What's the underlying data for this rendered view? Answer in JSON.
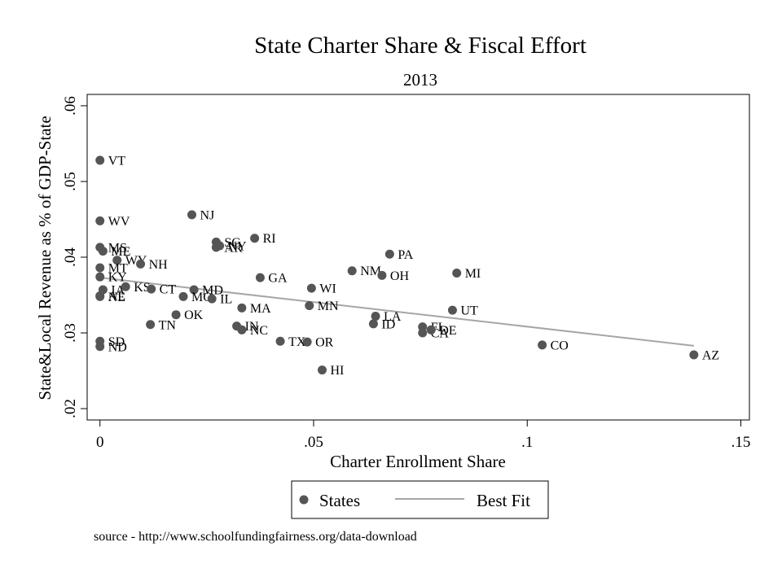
{
  "chart_data": {
    "type": "scatter",
    "title": "State Charter Share & Fiscal Effort",
    "subtitle": "2013",
    "xlabel": "Charter Enrollment Share",
    "ylabel": "State&Local Revenue as % of GDP-State",
    "xlim": [
      -0.003,
      0.152
    ],
    "ylim": [
      0.0185,
      0.0615
    ],
    "xticks": [
      0,
      0.05,
      0.1,
      0.15
    ],
    "xtick_labels": [
      "0",
      ".05",
      ".1",
      ".15"
    ],
    "yticks": [
      0.02,
      0.03,
      0.04,
      0.05,
      0.06
    ],
    "ytick_labels": [
      ".02",
      ".03",
      ".04",
      ".05",
      ".06"
    ],
    "grid": false,
    "legend": {
      "placement": "bottom",
      "entries": [
        {
          "label": "States",
          "type": "marker"
        },
        {
          "label": "Best Fit",
          "type": "line"
        }
      ]
    },
    "series": [
      {
        "name": "States",
        "points": [
          {
            "label": "VT",
            "x": 0.0,
            "y": 0.0528
          },
          {
            "label": "WV",
            "x": 0.0,
            "y": 0.0448
          },
          {
            "label": "MS",
            "x": 0.0,
            "y": 0.0413
          },
          {
            "label": "ME",
            "x": 0.0007,
            "y": 0.0408
          },
          {
            "label": "WY",
            "x": 0.004,
            "y": 0.0396
          },
          {
            "label": "NH",
            "x": 0.0095,
            "y": 0.0391
          },
          {
            "label": "MT",
            "x": 0.0,
            "y": 0.0386
          },
          {
            "label": "KY",
            "x": 0.0,
            "y": 0.0374
          },
          {
            "label": "IA",
            "x": 0.0007,
            "y": 0.0357
          },
          {
            "label": "KS",
            "x": 0.006,
            "y": 0.0361
          },
          {
            "label": "CT",
            "x": 0.012,
            "y": 0.0358
          },
          {
            "label": "NE",
            "x": 0.0,
            "y": 0.0348
          },
          {
            "label": "AL",
            "x": 0.0,
            "y": 0.0349
          },
          {
            "label": "SD",
            "x": 0.0,
            "y": 0.0289
          },
          {
            "label": "ND",
            "x": 0.0,
            "y": 0.0282
          },
          {
            "label": "NJ",
            "x": 0.0215,
            "y": 0.0456
          },
          {
            "label": "SC",
            "x": 0.0272,
            "y": 0.042
          },
          {
            "label": "NY",
            "x": 0.028,
            "y": 0.0415
          },
          {
            "label": "AR",
            "x": 0.0272,
            "y": 0.0413
          },
          {
            "label": "RI",
            "x": 0.0362,
            "y": 0.0425
          },
          {
            "label": "GA",
            "x": 0.0375,
            "y": 0.0373
          },
          {
            "label": "MD",
            "x": 0.022,
            "y": 0.0357
          },
          {
            "label": "MO",
            "x": 0.0195,
            "y": 0.0348
          },
          {
            "label": "IL",
            "x": 0.0262,
            "y": 0.0345
          },
          {
            "label": "OK",
            "x": 0.0178,
            "y": 0.0324
          },
          {
            "label": "TN",
            "x": 0.0118,
            "y": 0.0311
          },
          {
            "label": "MA",
            "x": 0.0332,
            "y": 0.0333
          },
          {
            "label": "IN",
            "x": 0.032,
            "y": 0.0309
          },
          {
            "label": "NC",
            "x": 0.0332,
            "y": 0.0304
          },
          {
            "label": "TX",
            "x": 0.0422,
            "y": 0.0289
          },
          {
            "label": "OR",
            "x": 0.0485,
            "y": 0.0288
          },
          {
            "label": "HI",
            "x": 0.052,
            "y": 0.0251
          },
          {
            "label": "WI",
            "x": 0.0495,
            "y": 0.0359
          },
          {
            "label": "MN",
            "x": 0.049,
            "y": 0.0336
          },
          {
            "label": "NM",
            "x": 0.059,
            "y": 0.0382
          },
          {
            "label": "OH",
            "x": 0.066,
            "y": 0.0376
          },
          {
            "label": "PA",
            "x": 0.0678,
            "y": 0.0404
          },
          {
            "label": "LA",
            "x": 0.0645,
            "y": 0.0322
          },
          {
            "label": "ID",
            "x": 0.064,
            "y": 0.0312
          },
          {
            "label": "FL",
            "x": 0.0755,
            "y": 0.0308
          },
          {
            "label": "CA",
            "x": 0.0755,
            "y": 0.03
          },
          {
            "label": "DE",
            "x": 0.0775,
            "y": 0.0304
          },
          {
            "label": "UT",
            "x": 0.0825,
            "y": 0.033
          },
          {
            "label": "MI",
            "x": 0.0835,
            "y": 0.0379
          },
          {
            "label": "CO",
            "x": 0.1035,
            "y": 0.0284
          },
          {
            "label": "AZ",
            "x": 0.139,
            "y": 0.0271
          }
        ]
      },
      {
        "name": "Best Fit",
        "type": "line",
        "x": [
          0.0,
          0.139
        ],
        "y": [
          0.0373,
          0.0283
        ]
      }
    ]
  },
  "footer": {
    "source": "source - http://www.schoolfundingfairness.org/data-download"
  },
  "colors": {
    "marker": "#555555",
    "fit_line": "#a6a6a6",
    "frame": "#000000"
  }
}
